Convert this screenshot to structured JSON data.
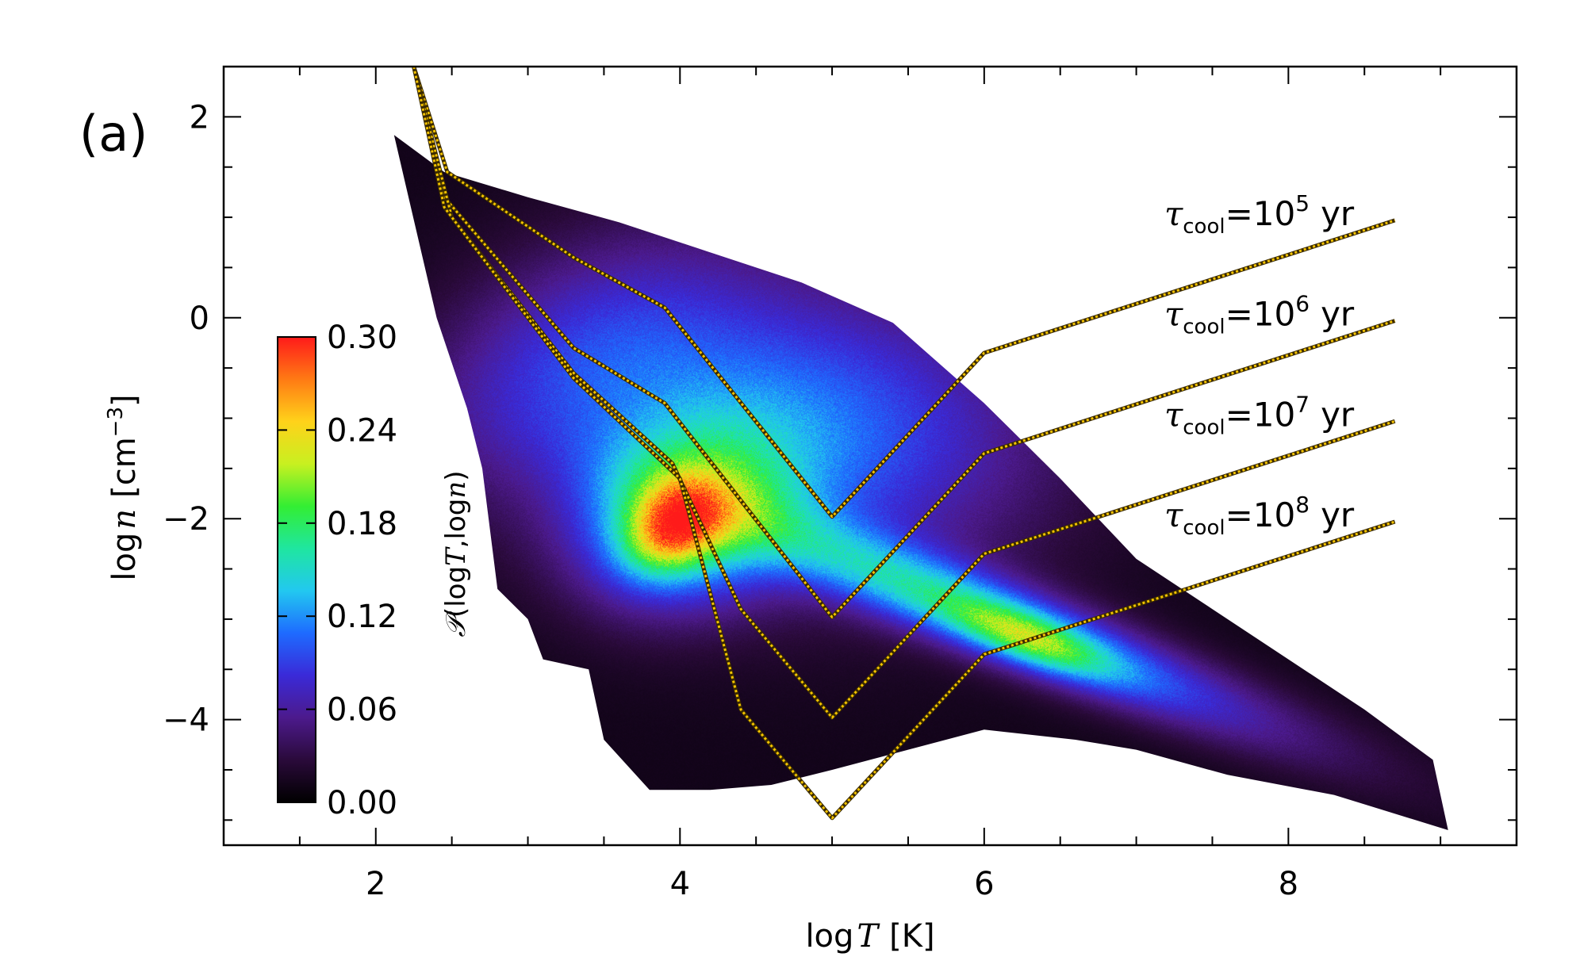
{
  "panel_label": "(a)",
  "chart_data": {
    "type": "heatmap",
    "xlabel": {
      "prefix": "log",
      "var": "T",
      "unit": "[K]"
    },
    "ylabel": {
      "prefix": "log",
      "var": "n",
      "unit_open": "[cm",
      "unit_exp": "−3",
      "unit_close": "]"
    },
    "xlim": [
      1,
      9.5
    ],
    "ylim": [
      -5.25,
      2.5
    ],
    "xticks": [
      2,
      4,
      6,
      8
    ],
    "xtick_labels": [
      "2",
      "4",
      "6",
      "8"
    ],
    "yticks": [
      -4,
      -2,
      0,
      2
    ],
    "ytick_labels": [
      "−4",
      "−2",
      "0",
      "2"
    ],
    "colorbar": {
      "range": [
        0.0,
        0.3
      ],
      "tick_values": [
        0.0,
        0.06,
        0.12,
        0.18,
        0.24,
        0.3
      ],
      "tick_labels": [
        "0.00",
        "0.06",
        "0.12",
        "0.18",
        "0.24",
        "0.30"
      ],
      "label": {
        "script": "𝒫",
        "open": "(log",
        "var1": "T",
        "mid": ",log",
        "var2": "n",
        "close": ")"
      },
      "colormap": [
        "#000000",
        "#2a0a3a",
        "#4c1a8c",
        "#3a2ad8",
        "#1e6bff",
        "#22c8f0",
        "#1fe6a0",
        "#33ee33",
        "#c8f020",
        "#ffd21a",
        "#ff7a14",
        "#ff1a1a"
      ]
    },
    "distribution": {
      "outline": [
        [
          2.12,
          1.82
        ],
        [
          2.45,
          1.45
        ],
        [
          3.0,
          1.2
        ],
        [
          3.6,
          0.95
        ],
        [
          4.2,
          0.65
        ],
        [
          4.8,
          0.35
        ],
        [
          5.4,
          -0.05
        ],
        [
          6.0,
          -0.85
        ],
        [
          6.5,
          -1.6
        ],
        [
          7.0,
          -2.4
        ],
        [
          7.5,
          -2.9
        ],
        [
          8.0,
          -3.4
        ],
        [
          8.5,
          -3.9
        ],
        [
          8.95,
          -4.4
        ],
        [
          9.05,
          -5.1
        ],
        [
          8.3,
          -4.75
        ],
        [
          7.6,
          -4.55
        ],
        [
          7.0,
          -4.3
        ],
        [
          6.6,
          -4.2
        ],
        [
          6.0,
          -4.1
        ],
        [
          5.5,
          -4.3
        ],
        [
          5.0,
          -4.5
        ],
        [
          4.6,
          -4.65
        ],
        [
          4.2,
          -4.7
        ],
        [
          3.8,
          -4.7
        ],
        [
          3.5,
          -4.2
        ],
        [
          3.4,
          -3.5
        ],
        [
          3.1,
          -3.4
        ],
        [
          3.0,
          -3.0
        ],
        [
          2.8,
          -2.7
        ],
        [
          2.7,
          -1.5
        ],
        [
          2.6,
          -0.9
        ],
        [
          2.4,
          0.0
        ],
        [
          2.2,
          1.3
        ]
      ],
      "cores": [
        {
          "x": 4.75,
          "y": -1.1,
          "sx": 1.1,
          "sy": 1.0,
          "rot": -0.45,
          "amp": 0.1
        },
        {
          "x": 4.05,
          "y": -1.95,
          "sx": 0.45,
          "sy": 0.6,
          "rot": -0.3,
          "amp": 0.14
        },
        {
          "x": 3.95,
          "y": -2.1,
          "sx": 0.2,
          "sy": 0.3,
          "rot": -0.3,
          "amp": 0.12
        },
        {
          "x": 5.9,
          "y": -2.9,
          "sx": 1.2,
          "sy": 0.25,
          "rot": -0.55,
          "amp": 0.12
        },
        {
          "x": 6.3,
          "y": -3.2,
          "sx": 0.4,
          "sy": 0.15,
          "rot": -0.55,
          "amp": 0.08
        },
        {
          "x": 3.3,
          "y": -0.4,
          "sx": 0.6,
          "sy": 1.0,
          "rot": -0.6,
          "amp": 0.05
        },
        {
          "x": 7.3,
          "y": -3.7,
          "sx": 1.3,
          "sy": 0.25,
          "rot": -0.55,
          "amp": 0.03
        }
      ]
    },
    "cooling_contours": [
      {
        "label_sym": "τ",
        "label_sub": "cool",
        "label_eq": "=10",
        "label_exp": "5",
        "label_unit": "yr",
        "points": [
          [
            2.25,
            2.5
          ],
          [
            2.47,
            1.45
          ],
          [
            3.3,
            0.6
          ],
          [
            3.9,
            0.1
          ],
          [
            5.0,
            -1.98
          ],
          [
            6.0,
            -0.35
          ],
          [
            8.7,
            0.97
          ]
        ]
      },
      {
        "label_sym": "τ",
        "label_sub": "cool",
        "label_eq": "=10",
        "label_exp": "6",
        "label_unit": "yr",
        "points": [
          [
            2.25,
            2.5
          ],
          [
            2.45,
            1.2
          ],
          [
            3.3,
            -0.3
          ],
          [
            3.9,
            -0.85
          ],
          [
            5.0,
            -2.98
          ],
          [
            6.0,
            -1.35
          ],
          [
            8.7,
            -0.03
          ]
        ]
      },
      {
        "label_sym": "τ",
        "label_sub": "cool",
        "label_eq": "=10",
        "label_exp": "7",
        "label_unit": "yr",
        "points": [
          [
            2.25,
            2.5
          ],
          [
            2.5,
            1.0
          ],
          [
            3.3,
            -0.55
          ],
          [
            3.95,
            -1.45
          ],
          [
            4.4,
            -2.9
          ],
          [
            5.0,
            -3.98
          ],
          [
            6.0,
            -2.35
          ],
          [
            8.7,
            -1.03
          ]
        ]
      },
      {
        "label_sym": "τ",
        "label_sub": "cool",
        "label_eq": "=10",
        "label_exp": "8",
        "label_unit": "yr",
        "points": [
          [
            2.25,
            2.5
          ],
          [
            2.45,
            1.1
          ],
          [
            3.3,
            -0.6
          ],
          [
            4.0,
            -1.6
          ],
          [
            4.4,
            -3.9
          ],
          [
            5.0,
            -4.98
          ],
          [
            6.0,
            -3.35
          ],
          [
            8.7,
            -2.03
          ]
        ]
      }
    ]
  }
}
